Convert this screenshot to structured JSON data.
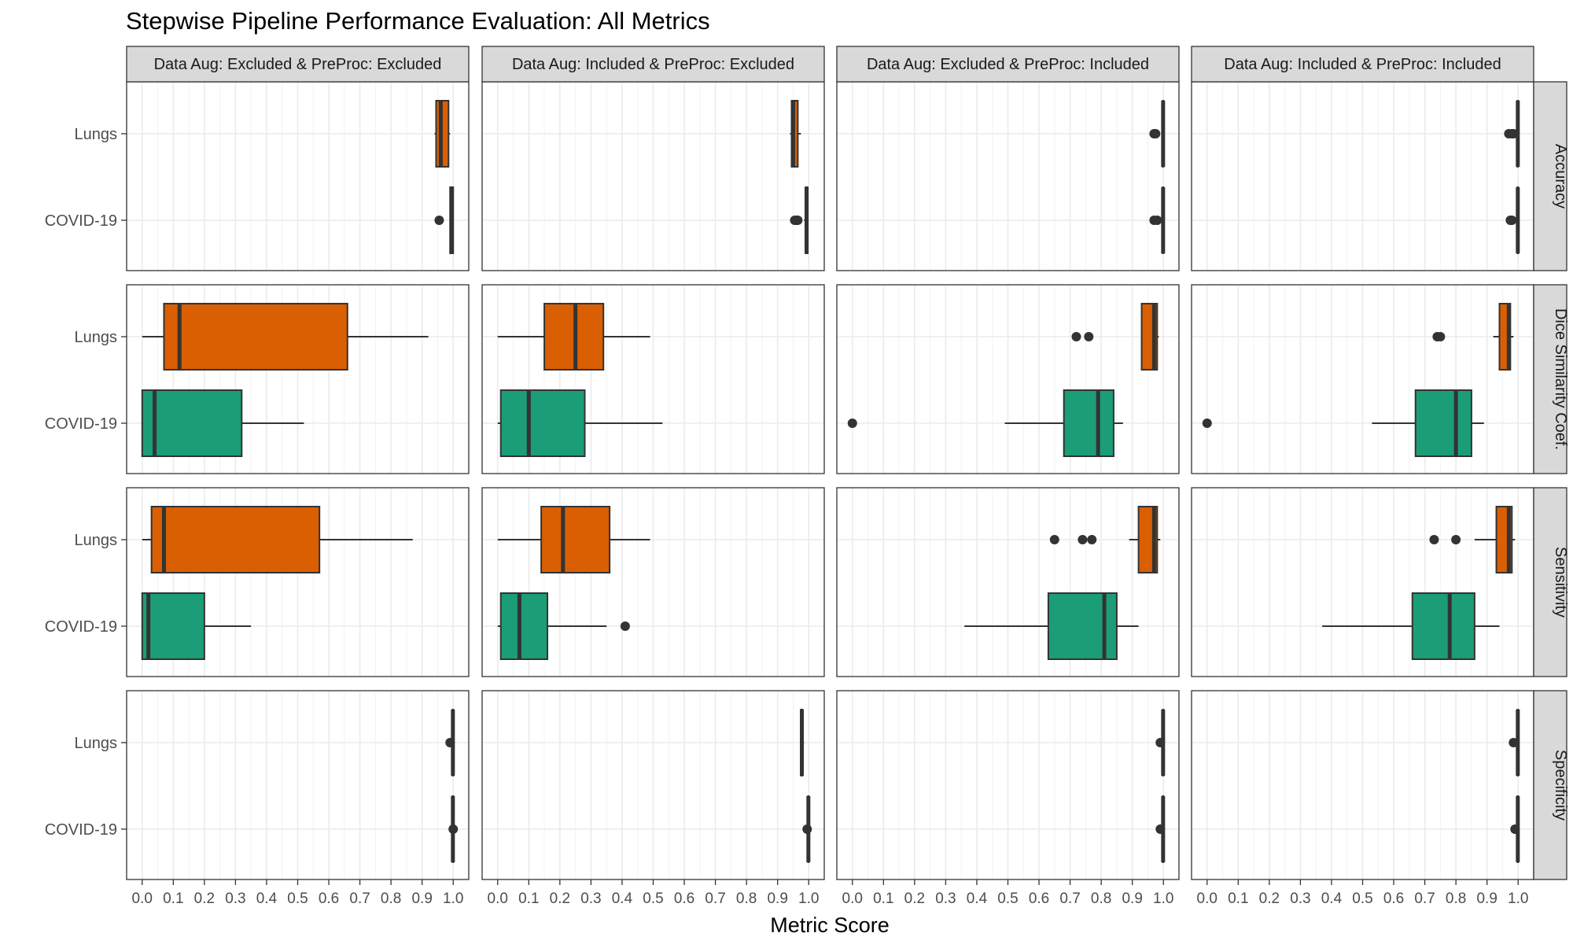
{
  "chart_data": {
    "type": "boxplot",
    "title": "Stepwise Pipeline Performance Evaluation: All Metrics",
    "xlabel": "Metric Score",
    "ylabel": "",
    "xlim": [
      -0.05,
      1.05
    ],
    "xticks": [
      "0.0",
      "0.1",
      "0.2",
      "0.3",
      "0.4",
      "0.5",
      "0.6",
      "0.7",
      "0.8",
      "0.9",
      "1.0"
    ],
    "grid": true,
    "facet_columns": [
      "Data Aug: Excluded & PreProc: Excluded",
      "Data Aug: Included & PreProc: Excluded",
      "Data Aug: Excluded & PreProc: Included",
      "Data Aug: Included & PreProc: Included"
    ],
    "facet_rows": [
      "Accuracy",
      "Dice Similarity Coef.",
      "Sensitivity",
      "Specificity"
    ],
    "categories": [
      "Lungs",
      "COVID-19"
    ],
    "colors": {
      "Lungs": "#d95f02",
      "COVID-19": "#1b9e77"
    },
    "panels": [
      [
        {
          "Lungs": {
            "min": 0.94,
            "q1": 0.945,
            "median": 0.96,
            "q3": 0.985,
            "max": 0.99,
            "outliers": []
          },
          "COVID-19": {
            "min": 0.99,
            "q1": 0.99,
            "median": 0.995,
            "q3": 1.0,
            "max": 1.0,
            "outliers": [
              0.955
            ]
          }
        },
        {
          "Lungs": {
            "min": 0.94,
            "q1": 0.945,
            "median": 0.95,
            "q3": 0.965,
            "max": 0.975,
            "outliers": []
          },
          "COVID-19": {
            "min": 0.985,
            "q1": 0.99,
            "median": 0.993,
            "q3": 0.997,
            "max": 1.0,
            "outliers": [
              0.955,
              0.96,
              0.965
            ]
          }
        },
        {
          "Lungs": {
            "min": 0.998,
            "q1": 0.998,
            "median": 0.999,
            "q3": 1.0,
            "max": 1.0,
            "outliers": [
              0.97,
              0.975
            ]
          },
          "COVID-19": {
            "min": 0.998,
            "q1": 0.998,
            "median": 0.999,
            "q3": 1.0,
            "max": 1.0,
            "outliers": [
              0.97,
              0.98
            ]
          }
        },
        {
          "Lungs": {
            "min": 0.998,
            "q1": 0.998,
            "median": 0.999,
            "q3": 1.0,
            "max": 1.0,
            "outliers": [
              0.97,
              0.98,
              0.985
            ]
          },
          "COVID-19": {
            "min": 0.998,
            "q1": 0.998,
            "median": 0.999,
            "q3": 1.0,
            "max": 1.0,
            "outliers": [
              0.975,
              0.98
            ]
          }
        }
      ],
      [
        {
          "Lungs": {
            "min": 0.0,
            "q1": 0.07,
            "median": 0.12,
            "q3": 0.66,
            "max": 0.92,
            "outliers": []
          },
          "COVID-19": {
            "min": 0.0,
            "q1": 0.0,
            "median": 0.04,
            "q3": 0.32,
            "max": 0.52,
            "outliers": []
          }
        },
        {
          "Lungs": {
            "min": 0.0,
            "q1": 0.15,
            "median": 0.25,
            "q3": 0.34,
            "max": 0.49,
            "outliers": []
          },
          "COVID-19": {
            "min": 0.0,
            "q1": 0.01,
            "median": 0.1,
            "q3": 0.28,
            "max": 0.53,
            "outliers": []
          }
        },
        {
          "Lungs": {
            "min": 0.93,
            "q1": 0.93,
            "median": 0.97,
            "q3": 0.98,
            "max": 0.985,
            "outliers": [
              0.72,
              0.76
            ]
          },
          "COVID-19": {
            "min": 0.49,
            "q1": 0.68,
            "median": 0.79,
            "q3": 0.84,
            "max": 0.87,
            "outliers": [
              0.0
            ]
          }
        },
        {
          "Lungs": {
            "min": 0.92,
            "q1": 0.94,
            "median": 0.97,
            "q3": 0.975,
            "max": 0.985,
            "outliers": [
              0.74,
              0.75
            ]
          },
          "COVID-19": {
            "min": 0.53,
            "q1": 0.67,
            "median": 0.8,
            "q3": 0.85,
            "max": 0.89,
            "outliers": [
              0.0
            ]
          }
        }
      ],
      [
        {
          "Lungs": {
            "min": 0.0,
            "q1": 0.03,
            "median": 0.07,
            "q3": 0.57,
            "max": 0.87,
            "outliers": []
          },
          "COVID-19": {
            "min": 0.0,
            "q1": 0.0,
            "median": 0.02,
            "q3": 0.2,
            "max": 0.35,
            "outliers": []
          }
        },
        {
          "Lungs": {
            "min": 0.0,
            "q1": 0.14,
            "median": 0.21,
            "q3": 0.36,
            "max": 0.49,
            "outliers": []
          },
          "COVID-19": {
            "min": 0.0,
            "q1": 0.01,
            "median": 0.07,
            "q3": 0.16,
            "max": 0.35,
            "outliers": [
              0.41
            ]
          }
        },
        {
          "Lungs": {
            "min": 0.89,
            "q1": 0.92,
            "median": 0.97,
            "q3": 0.98,
            "max": 0.99,
            "outliers": [
              0.65,
              0.74,
              0.77
            ]
          },
          "COVID-19": {
            "min": 0.36,
            "q1": 0.63,
            "median": 0.81,
            "q3": 0.85,
            "max": 0.92,
            "outliers": []
          }
        },
        {
          "Lungs": {
            "min": 0.86,
            "q1": 0.93,
            "median": 0.97,
            "q3": 0.98,
            "max": 0.99,
            "outliers": [
              0.73,
              0.8
            ]
          },
          "COVID-19": {
            "min": 0.37,
            "q1": 0.66,
            "median": 0.78,
            "q3": 0.86,
            "max": 0.94,
            "outliers": []
          }
        }
      ],
      [
        {
          "Lungs": {
            "min": 0.998,
            "q1": 0.998,
            "median": 0.999,
            "q3": 1.0,
            "max": 1.0,
            "outliers": [
              0.99
            ]
          },
          "COVID-19": {
            "min": 0.998,
            "q1": 0.998,
            "median": 0.999,
            "q3": 1.0,
            "max": 1.0,
            "outliers": [
              1.0
            ]
          }
        },
        {
          "Lungs": {
            "min": 0.975,
            "q1": 0.975,
            "median": 0.978,
            "q3": 0.98,
            "max": 0.985,
            "outliers": []
          },
          "COVID-19": {
            "min": 0.997,
            "q1": 0.998,
            "median": 0.999,
            "q3": 1.0,
            "max": 1.0,
            "outliers": [
              0.995
            ]
          }
        },
        {
          "Lungs": {
            "min": 0.998,
            "q1": 0.998,
            "median": 0.999,
            "q3": 1.0,
            "max": 1.0,
            "outliers": [
              0.99
            ]
          },
          "COVID-19": {
            "min": 0.998,
            "q1": 0.998,
            "median": 0.999,
            "q3": 1.0,
            "max": 1.0,
            "outliers": [
              0.99
            ]
          }
        },
        {
          "Lungs": {
            "min": 0.998,
            "q1": 0.998,
            "median": 0.999,
            "q3": 1.0,
            "max": 1.0,
            "outliers": [
              0.985
            ]
          },
          "COVID-19": {
            "min": 0.998,
            "q1": 0.998,
            "median": 0.999,
            "q3": 1.0,
            "max": 1.0,
            "outliers": [
              0.99
            ]
          }
        }
      ]
    ]
  }
}
